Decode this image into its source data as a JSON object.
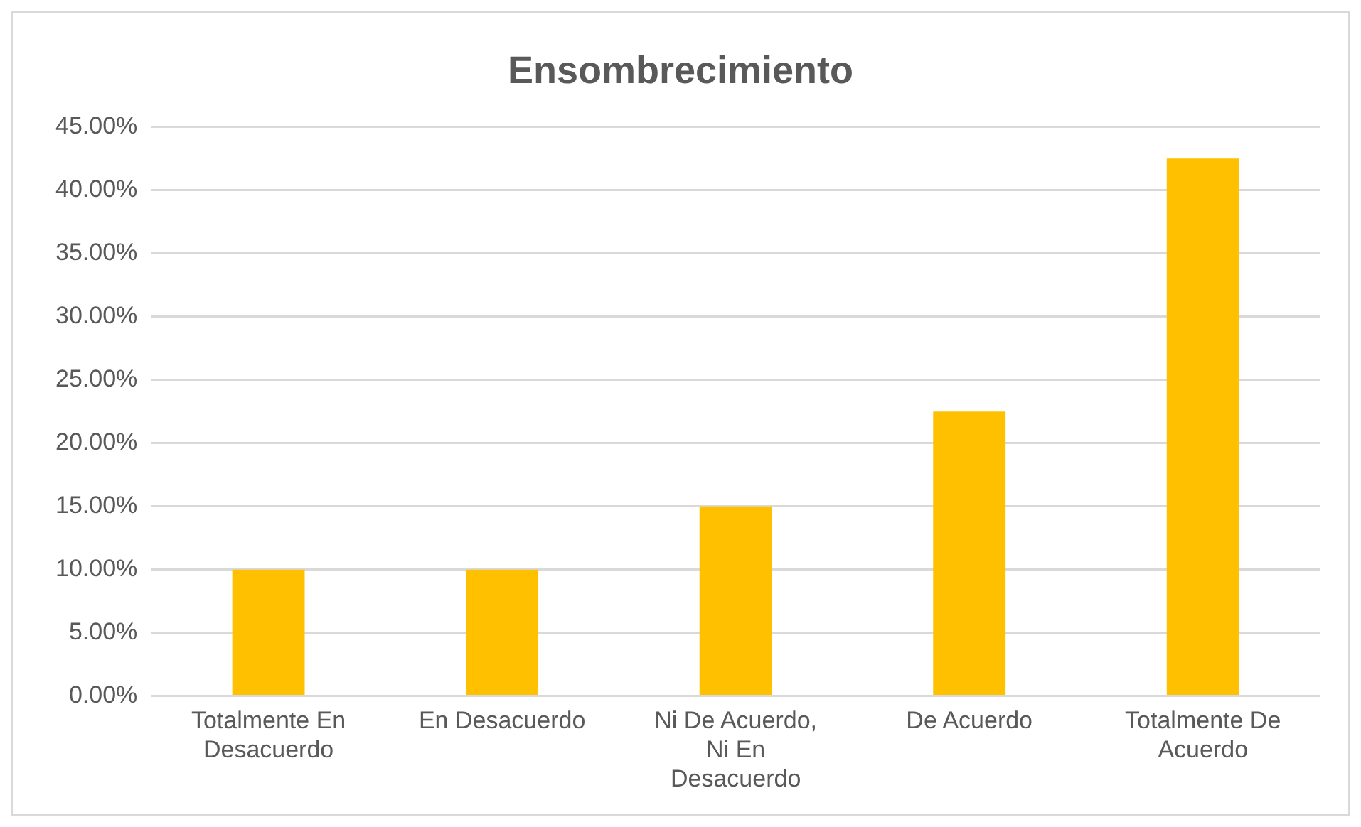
{
  "chart_data": {
    "type": "bar",
    "title": "Ensombrecimiento",
    "categories": [
      "Totalmente En Desacuerdo",
      "En Desacuerdo",
      "Ni De Acuerdo, Ni En Desacuerdo",
      "De Acuerdo",
      "Totalmente De Acuerdo"
    ],
    "values": [
      10,
      10,
      15,
      22.5,
      42.5
    ],
    "color": "#ffc000",
    "ylim": [
      0,
      45
    ],
    "yticks": [
      {
        "value": 0,
        "label": "0.00%"
      },
      {
        "value": 5,
        "label": "5.00%"
      },
      {
        "value": 10,
        "label": "10.00%"
      },
      {
        "value": 15,
        "label": "15.00%"
      },
      {
        "value": 20,
        "label": "20.00%"
      },
      {
        "value": 25,
        "label": "25.00%"
      },
      {
        "value": 30,
        "label": "30.00%"
      },
      {
        "value": 35,
        "label": "35.00%"
      },
      {
        "value": 40,
        "label": "40.00%"
      },
      {
        "value": 45,
        "label": "45.00%"
      }
    ],
    "grid": "y",
    "legend": false
  }
}
